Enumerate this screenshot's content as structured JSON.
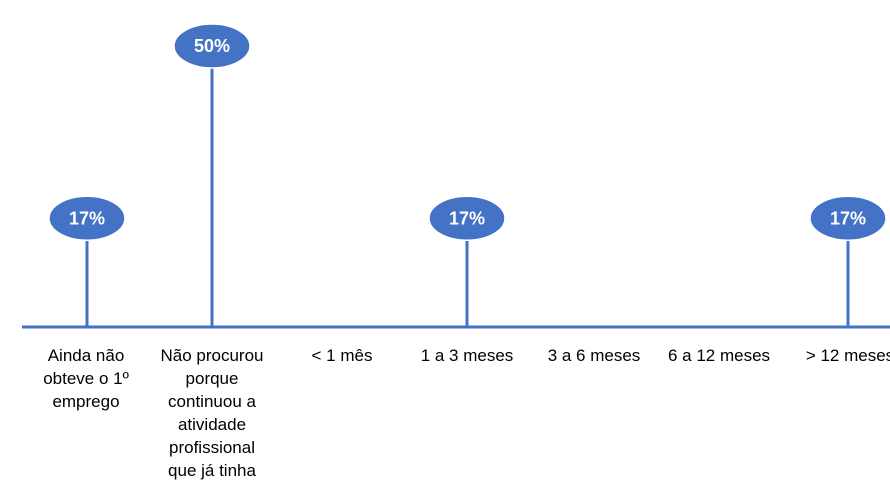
{
  "chart_data": {
    "type": "line",
    "title": "",
    "xlabel": "",
    "ylabel": "",
    "categories": [
      "Ainda não obteve o 1º emprego",
      "Não procurou porque continuou a atividade profissional que já tinha",
      "< 1  mês",
      "1  a  3 meses",
      "3  a  6 meses",
      "6  a 12 meses",
      "> 12 meses"
    ],
    "category_lines": [
      [
        "Ainda não",
        "obteve o 1º",
        "emprego"
      ],
      [
        "Não procurou",
        "porque",
        "continuou a",
        "atividade",
        "profissional",
        "que já tinha"
      ],
      [
        "< 1  mês"
      ],
      [
        "1  a  3 meses"
      ],
      [
        "3  a  6 meses"
      ],
      [
        "6  a 12 meses"
      ],
      [
        "> 12 meses"
      ]
    ],
    "values": [
      17,
      50,
      0,
      17,
      0,
      0,
      17
    ],
    "data_labels": [
      "17%",
      "50%",
      "",
      "17%",
      "",
      "",
      "17%"
    ],
    "ylim": [
      0,
      50
    ],
    "grid": false,
    "legend": "none",
    "colors": {
      "line": "#4472c4",
      "bubble": "#4472c4",
      "bubble_border": "#ffffff",
      "label_text": "#ffffff",
      "category_text": "#000000"
    }
  }
}
